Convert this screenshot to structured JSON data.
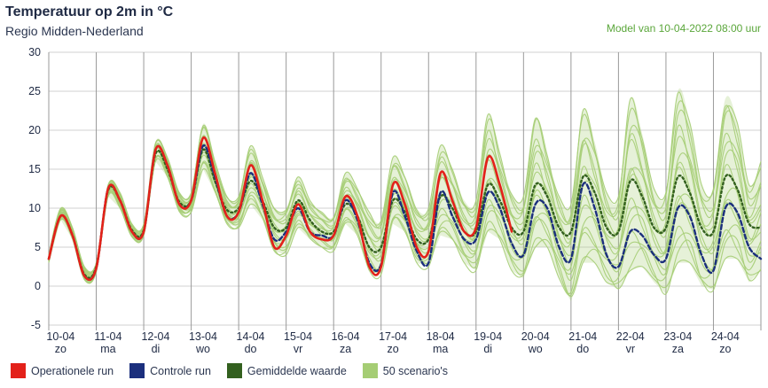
{
  "header": {
    "title": "Temperatuur op 2m in °C",
    "subtitle": "Regio Midden-Nederland",
    "model": "Model van 10-04-2022 08:00 uur"
  },
  "colors": {
    "operational": "#e3211a",
    "control": "#1b2f7d",
    "mean": "#33601f",
    "scenarios": "#a5cd74",
    "grid": "#d0d0d0",
    "axis": "#1f2a44"
  },
  "legend": [
    {
      "label": "Operationele run",
      "color": "#e3211a"
    },
    {
      "label": "Controle run",
      "color": "#1b2f7d"
    },
    {
      "label": "Gemiddelde waarde",
      "color": "#33601f"
    },
    {
      "label": "50 scenario's",
      "color": "#a5cd74"
    }
  ],
  "chart_data": {
    "type": "line",
    "title": "Temperatuur op 2m in °C",
    "ylabel": "°C",
    "ylim": [
      -5,
      30
    ],
    "yticks": [
      -5,
      0,
      5,
      10,
      15,
      20,
      25,
      30
    ],
    "xlim": [
      10,
      25
    ],
    "days": [
      {
        "date": "10-04",
        "day": "zo"
      },
      {
        "date": "11-04",
        "day": "ma"
      },
      {
        "date": "12-04",
        "day": "di"
      },
      {
        "date": "13-04",
        "day": "wo"
      },
      {
        "date": "14-04",
        "day": "do"
      },
      {
        "date": "15-04",
        "day": "vr"
      },
      {
        "date": "16-04",
        "day": "za"
      },
      {
        "date": "17-04",
        "day": "zo"
      },
      {
        "date": "18-04",
        "day": "ma"
      },
      {
        "date": "19-04",
        "day": "di"
      },
      {
        "date": "20-04",
        "day": "wo"
      },
      {
        "date": "21-04",
        "day": "do"
      },
      {
        "date": "22-04",
        "day": "vr"
      },
      {
        "date": "23-04",
        "day": "za"
      },
      {
        "date": "24-04",
        "day": "zo"
      }
    ],
    "series": [
      {
        "name": "Operationele run",
        "style": "solid",
        "x": [
          10.0,
          10.25,
          10.5,
          10.75,
          11.0,
          11.25,
          11.5,
          11.75,
          12.0,
          12.25,
          12.5,
          12.75,
          13.0,
          13.25,
          13.5,
          13.75,
          14.0,
          14.25,
          14.5,
          14.75,
          15.0,
          15.25,
          15.5,
          15.75,
          16.0,
          16.25,
          16.5,
          16.75,
          17.0,
          17.25,
          17.5,
          17.75,
          18.0,
          18.25,
          18.5,
          18.75,
          19.0,
          19.25,
          19.5,
          19.75
        ],
        "values": [
          3.5,
          9.0,
          6.5,
          1.3,
          2.3,
          12.5,
          11.0,
          7.0,
          7.0,
          17.5,
          15.5,
          10.5,
          11.0,
          19.0,
          14.5,
          9.0,
          9.5,
          15.5,
          11.0,
          5.0,
          6.5,
          10.5,
          7.0,
          6.0,
          6.5,
          11.5,
          9.0,
          2.5,
          2.5,
          13.0,
          10.5,
          5.0,
          4.5,
          14.5,
          11.0,
          7.0,
          7.5,
          16.5,
          13.0,
          7.0
        ]
      },
      {
        "name": "Controle run",
        "style": "dashed",
        "x": [
          10.0,
          10.25,
          10.5,
          10.75,
          11.0,
          11.25,
          11.5,
          11.75,
          12.0,
          12.25,
          12.5,
          12.75,
          13.0,
          13.25,
          13.5,
          13.75,
          14.0,
          14.25,
          14.5,
          14.75,
          15.0,
          15.25,
          15.5,
          15.75,
          16.0,
          16.25,
          16.5,
          16.75,
          17.0,
          17.25,
          17.5,
          17.75,
          18.0,
          18.25,
          18.5,
          18.75,
          19.0,
          19.25,
          19.5,
          19.75,
          20.0,
          20.25,
          20.5,
          20.75,
          21.0,
          21.25,
          21.5,
          21.75,
          22.0,
          22.25,
          22.5,
          22.75,
          23.0,
          23.25,
          23.5,
          23.75,
          24.0,
          24.25,
          24.5,
          24.75,
          25.0
        ],
        "values": [
          3.5,
          9.0,
          6.5,
          1.3,
          2.3,
          12.5,
          11.0,
          7.0,
          7.0,
          17.5,
          15.5,
          10.5,
          11.0,
          18.0,
          14.0,
          9.0,
          9.5,
          14.5,
          10.5,
          6.0,
          7.0,
          10.0,
          7.0,
          6.5,
          6.5,
          11.0,
          8.5,
          3.0,
          2.8,
          12.0,
          9.0,
          4.5,
          3.0,
          12.0,
          9.0,
          6.0,
          6.0,
          12.0,
          10.0,
          5.5,
          4.0,
          10.5,
          10.0,
          5.0,
          3.5,
          13.0,
          10.0,
          4.0,
          2.5,
          7.0,
          6.5,
          4.0,
          3.5,
          10.0,
          9.0,
          4.0,
          2.0,
          10.0,
          9.5,
          5.0,
          3.5
        ]
      },
      {
        "name": "Gemiddelde waarde",
        "style": "dotted",
        "x": [
          10.0,
          10.25,
          10.5,
          10.75,
          11.0,
          11.25,
          11.5,
          11.75,
          12.0,
          12.25,
          12.5,
          12.75,
          13.0,
          13.25,
          13.5,
          13.75,
          14.0,
          14.25,
          14.5,
          14.75,
          15.0,
          15.25,
          15.5,
          15.75,
          16.0,
          16.25,
          16.5,
          16.75,
          17.0,
          17.25,
          17.5,
          17.75,
          18.0,
          18.25,
          18.5,
          18.75,
          19.0,
          19.25,
          19.5,
          19.75,
          20.0,
          20.25,
          20.5,
          20.75,
          21.0,
          21.25,
          21.5,
          21.75,
          22.0,
          22.25,
          22.5,
          22.75,
          23.0,
          23.25,
          23.5,
          23.75,
          24.0,
          24.25,
          24.5,
          24.75,
          25.0
        ],
        "values": [
          3.5,
          9.0,
          6.5,
          1.5,
          2.5,
          12.3,
          11.0,
          7.2,
          7.2,
          17.0,
          15.0,
          10.8,
          11.0,
          17.5,
          13.5,
          9.8,
          10.0,
          13.5,
          11.0,
          7.5,
          7.5,
          11.0,
          8.5,
          7.0,
          7.0,
          10.5,
          9.0,
          5.0,
          5.0,
          11.0,
          9.5,
          6.0,
          6.0,
          11.5,
          10.0,
          7.0,
          7.0,
          13.0,
          11.0,
          7.5,
          7.0,
          13.0,
          11.5,
          7.5,
          7.0,
          14.0,
          12.0,
          7.5,
          7.0,
          13.5,
          11.5,
          7.5,
          7.5,
          14.0,
          12.0,
          7.5,
          7.0,
          14.0,
          12.5,
          8.0,
          7.5
        ]
      }
    ],
    "scenario_band": {
      "name": "50 scenario's",
      "x": [
        10.0,
        10.25,
        10.5,
        10.75,
        11.0,
        11.25,
        11.5,
        11.75,
        12.0,
        12.25,
        12.5,
        12.75,
        13.0,
        13.25,
        13.5,
        13.75,
        14.0,
        14.25,
        14.5,
        14.75,
        15.0,
        15.25,
        15.5,
        15.75,
        16.0,
        16.25,
        16.5,
        16.75,
        17.0,
        17.25,
        17.5,
        17.75,
        18.0,
        18.25,
        18.5,
        18.75,
        19.0,
        19.25,
        19.5,
        19.75,
        20.0,
        20.25,
        20.5,
        20.75,
        21.0,
        21.25,
        21.5,
        21.75,
        22.0,
        22.25,
        22.5,
        22.75,
        23.0,
        23.25,
        23.5,
        23.75,
        24.0,
        24.25,
        24.5,
        24.75,
        25.0
      ],
      "min": [
        3.0,
        8.5,
        6.0,
        0.8,
        1.8,
        11.5,
        10.0,
        6.3,
        6.5,
        16.0,
        14.0,
        9.5,
        9.5,
        15.0,
        12.0,
        8.0,
        7.5,
        10.5,
        8.5,
        4.5,
        4.0,
        7.5,
        6.0,
        5.0,
        4.5,
        8.0,
        6.5,
        2.0,
        1.5,
        8.0,
        7.0,
        3.0,
        2.5,
        6.5,
        6.0,
        3.0,
        2.0,
        7.0,
        6.0,
        2.0,
        1.0,
        5.0,
        5.0,
        1.0,
        -2.0,
        3.0,
        3.0,
        0.5,
        -0.5,
        2.0,
        2.5,
        0.5,
        -1.0,
        3.0,
        3.0,
        0.0,
        -0.5,
        3.5,
        3.5,
        0.5,
        2.0
      ],
      "max": [
        4.0,
        10.0,
        7.5,
        2.5,
        3.0,
        13.0,
        12.0,
        8.0,
        8.0,
        18.5,
        16.5,
        12.0,
        12.0,
        20.8,
        16.0,
        11.5,
        11.5,
        18.0,
        14.0,
        10.0,
        10.0,
        14.0,
        11.0,
        9.5,
        9.0,
        14.5,
        12.5,
        9.5,
        8.5,
        16.5,
        14.0,
        10.0,
        10.0,
        18.0,
        15.0,
        11.0,
        11.0,
        22.0,
        17.0,
        12.0,
        11.5,
        21.5,
        17.0,
        11.5,
        10.5,
        22.5,
        18.5,
        12.0,
        11.5,
        24.0,
        19.5,
        12.5,
        12.0,
        25.0,
        21.0,
        13.0,
        12.5,
        24.0,
        21.0,
        13.0,
        16.0
      ]
    }
  }
}
